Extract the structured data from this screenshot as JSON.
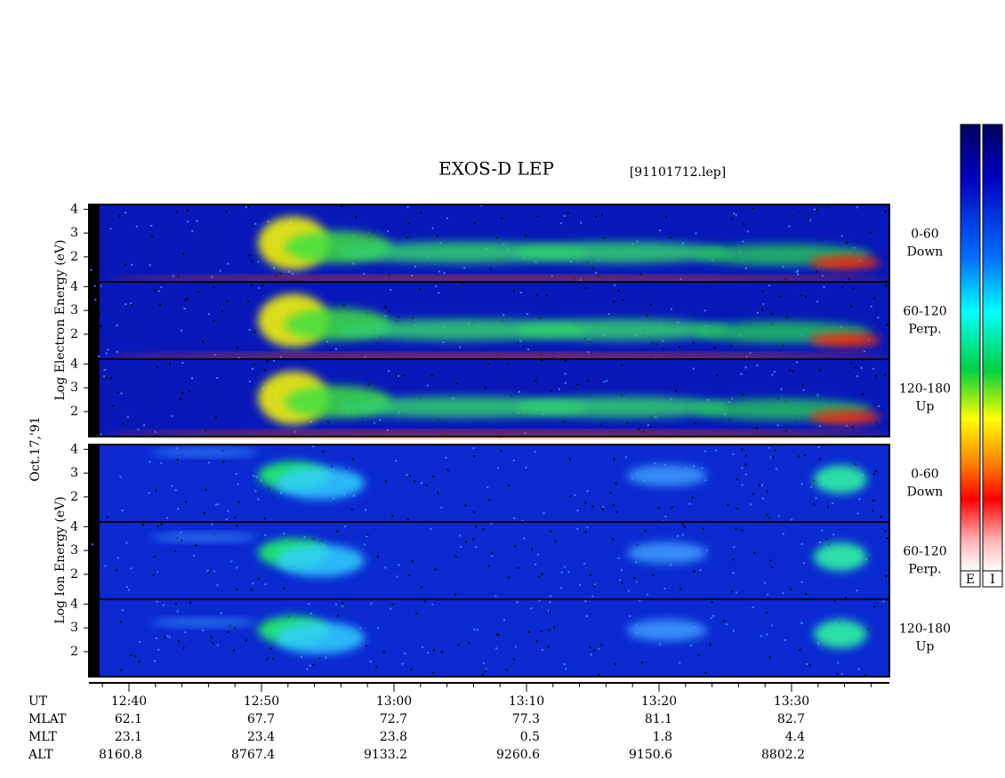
{
  "title": "EXOS-D LEP",
  "file": "[91101712.lep]",
  "date": "Oct.17,'91",
  "energy_axis": {
    "ylim": [
      0.95,
      4.2
    ],
    "yticks": [
      2,
      3,
      4
    ]
  },
  "electron": {
    "axis_label": "Log  Electron  Energy (eV)",
    "panels": [
      {
        "angle": "0-60",
        "direction": "Down"
      },
      {
        "angle": "60-120",
        "direction": "Perp."
      },
      {
        "angle": "120-180",
        "direction": "Up"
      }
    ]
  },
  "ion": {
    "axis_label": "Log  Ion  Energy (eV)",
    "panels": [
      {
        "angle": "0-60",
        "direction": "Down"
      },
      {
        "angle": "60-120",
        "direction": "Perp."
      },
      {
        "angle": "120-180",
        "direction": "Up"
      }
    ]
  },
  "ephemeris": [
    {
      "label": "UT",
      "values": [
        "12:40",
        "12:50",
        "13:00",
        "13:10",
        "13:20",
        "13:30"
      ]
    },
    {
      "label": "MLAT",
      "values": [
        62.1,
        67.7,
        72.7,
        77.3,
        81.1,
        82.7
      ]
    },
    {
      "label": "MLT",
      "values": [
        23.1,
        23.4,
        23.8,
        0.5,
        1.8,
        4.4
      ]
    },
    {
      "label": "ALT",
      "values": [
        8160.8,
        8767.4,
        9133.2,
        9260.6,
        9150.6,
        8802.2
      ]
    }
  ],
  "colorbars": [
    "E",
    "I"
  ]
}
